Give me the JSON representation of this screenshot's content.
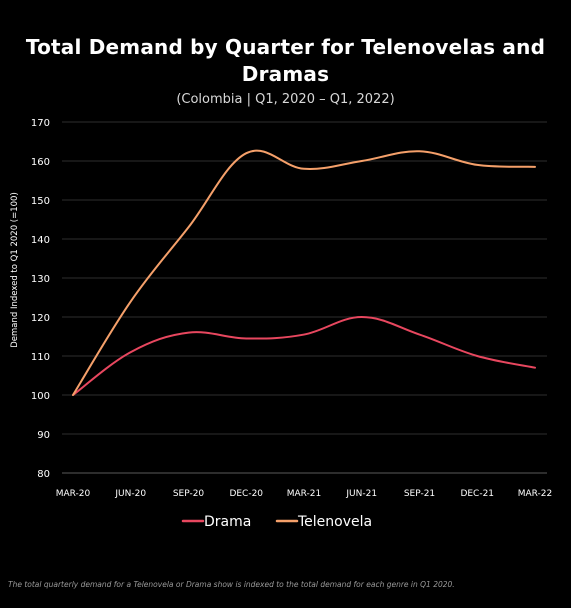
{
  "colors": {
    "background": "#000000",
    "grid": "#2e2e2e",
    "drama": "#e8475f",
    "telenovela": "#f5a06a"
  },
  "chart_data": {
    "type": "line",
    "title": "Total Demand by Quarter for Telenovelas and Dramas",
    "subtitle": "(Colombia  |  Q1, 2020 – Q1, 2022)",
    "xlabel": "",
    "ylabel": "Demand Indexed to Q1 2020 (=100)",
    "categories": [
      "MAR-20",
      "JUN-20",
      "SEP-20",
      "DEC-20",
      "MAR-21",
      "JUN-21",
      "SEP-21",
      "DEC-21",
      "MAR-22"
    ],
    "ylim": [
      80,
      170
    ],
    "yticks": [
      80,
      90,
      100,
      110,
      120,
      130,
      140,
      150,
      160,
      170
    ],
    "grid": true,
    "legend_position": "bottom-center",
    "series": [
      {
        "name": "Drama",
        "color": "#e8475f",
        "values": [
          100,
          111,
          116,
          114.5,
          115.5,
          120,
          115.5,
          110,
          107
        ]
      },
      {
        "name": "Telenovela",
        "color": "#f5a06a",
        "values": [
          100,
          124,
          143,
          162,
          158,
          160,
          162.5,
          159,
          158.5
        ]
      }
    ]
  },
  "footnote": "The total quarterly demand for a Telenovela or Drama show is indexed to the total demand for each genre in Q1 2020."
}
